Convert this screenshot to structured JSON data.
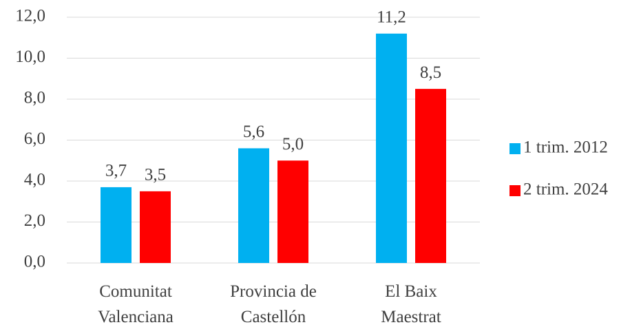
{
  "chart_data": {
    "type": "bar",
    "categories": [
      "Comunitat\nValenciana",
      "Provincia de\nCastellón",
      "El Baix\nMaestrat"
    ],
    "series": [
      {
        "name": "1 trim. 2012",
        "color": "#00b0f0",
        "values": [
          3.7,
          5.6,
          11.2
        ],
        "value_labels": [
          "3,7",
          "5,6",
          "11,2"
        ]
      },
      {
        "name": "2 trim. 2024",
        "color": "#ff0000",
        "values": [
          3.5,
          5.0,
          8.5
        ],
        "value_labels": [
          "3,5",
          "5,0",
          "8,5"
        ]
      }
    ],
    "ylim": [
      0,
      12
    ],
    "yticks": [
      {
        "value": 0,
        "label": "0,0"
      },
      {
        "value": 2,
        "label": "2,0"
      },
      {
        "value": 4,
        "label": "4,0"
      },
      {
        "value": 6,
        "label": "6,0"
      },
      {
        "value": 8,
        "label": "8,0"
      },
      {
        "value": 10,
        "label": "10,0"
      },
      {
        "value": 12,
        "label": "12,0"
      }
    ],
    "grid": true,
    "legend": "right"
  }
}
